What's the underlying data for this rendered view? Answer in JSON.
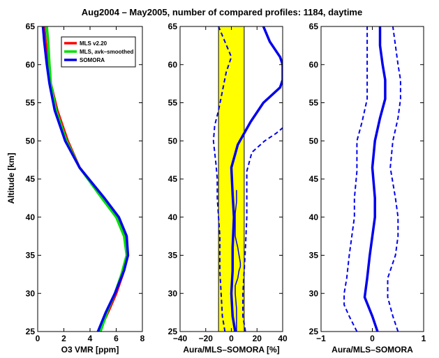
{
  "title": "Aug2004 – May2005,  number of compared profiles: 1184, daytime",
  "y_label": "Altitude [km]",
  "chart_data": [
    {
      "type": "line",
      "xlabel": "O3 VMR [ppm]",
      "xlim": [
        0,
        8
      ],
      "ylim": [
        25,
        65
      ],
      "x_ticks": [
        0,
        2,
        4,
        6,
        8
      ],
      "y_ticks": [
        25,
        30,
        35,
        40,
        45,
        50,
        55,
        60,
        65
      ],
      "legend": {
        "placement": "top-right",
        "entries": [
          "MLS v2.20",
          "MLS, avk–smoothed",
          "SOMORA"
        ]
      },
      "series": [
        {
          "name": "MLS v2.20",
          "color": "#ff0000",
          "style": "solid",
          "points": [
            [
              4.7,
              25
            ],
            [
              5.5,
              28
            ],
            [
              6.0,
              30
            ],
            [
              6.5,
              32.5
            ],
            [
              6.9,
              35
            ],
            [
              6.7,
              37.5
            ],
            [
              6.1,
              40
            ],
            [
              5.0,
              42.5
            ],
            [
              3.2,
              46.5
            ],
            [
              2.3,
              50
            ],
            [
              1.5,
              54
            ],
            [
              1.0,
              57.5
            ],
            [
              0.8,
              60
            ],
            [
              0.6,
              63
            ],
            [
              0.5,
              65
            ]
          ]
        },
        {
          "name": "MLS, avk–smoothed",
          "color": "#00e000",
          "style": "solid",
          "points": [
            [
              4.8,
              25
            ],
            [
              5.4,
              28
            ],
            [
              5.9,
              30
            ],
            [
              6.4,
              32.5
            ],
            [
              6.8,
              35
            ],
            [
              6.6,
              37.5
            ],
            [
              6.0,
              40
            ],
            [
              4.9,
              42.5
            ],
            [
              3.2,
              46.5
            ],
            [
              2.2,
              50
            ],
            [
              1.4,
              54
            ],
            [
              1.0,
              57.5
            ],
            [
              0.9,
              60
            ],
            [
              0.8,
              63
            ],
            [
              0.7,
              65
            ]
          ]
        },
        {
          "name": "SOMORA",
          "color": "#0000ee",
          "style": "solid",
          "points": [
            [
              4.6,
              25
            ],
            [
              5.2,
              27.5
            ],
            [
              5.9,
              30
            ],
            [
              6.6,
              33
            ],
            [
              6.9,
              35
            ],
            [
              6.8,
              37.5
            ],
            [
              6.2,
              40
            ],
            [
              5.1,
              42.5
            ],
            [
              3.2,
              46.5
            ],
            [
              2.1,
              50
            ],
            [
              1.3,
              54
            ],
            [
              0.9,
              57.5
            ],
            [
              0.7,
              60
            ],
            [
              0.5,
              63
            ],
            [
              0.4,
              65
            ]
          ]
        }
      ]
    },
    {
      "type": "line",
      "xlabel": "Aura/MLS–SOMORA [%]",
      "xlim": [
        -40,
        40
      ],
      "ylim": [
        25,
        65
      ],
      "x_ticks": [
        -40,
        -20,
        0,
        20,
        40
      ],
      "y_ticks": [
        25,
        30,
        35,
        40,
        45,
        50,
        55,
        60,
        65
      ],
      "band": {
        "x_min": -10,
        "x_max": 10,
        "color": "#ffff00"
      },
      "series": [
        {
          "role": "mean",
          "color": "#0000ee",
          "style": "solid",
          "points": [
            [
              3,
              25
            ],
            [
              1,
              27
            ],
            [
              0,
              30
            ],
            [
              1,
              33
            ],
            [
              1,
              36
            ],
            [
              2,
              40
            ],
            [
              1,
              43
            ],
            [
              0,
              46.5
            ],
            [
              5,
              49.5
            ],
            [
              15,
              52.5
            ],
            [
              25,
              55
            ],
            [
              38,
              57
            ],
            [
              40,
              58
            ],
            [
              40,
              60
            ],
            [
              38,
              61
            ],
            [
              30,
              63
            ],
            [
              25,
              65
            ]
          ]
        },
        {
          "role": "mean minus std",
          "color": "#0000ee",
          "style": "dashed",
          "points": [
            [
              -5,
              25
            ],
            [
              -7,
              27
            ],
            [
              -8,
              30
            ],
            [
              -9,
              33
            ],
            [
              -9,
              35
            ],
            [
              -9,
              37.5
            ],
            [
              -10,
              40
            ],
            [
              -11,
              42.5
            ],
            [
              -11,
              45
            ],
            [
              -12,
              47
            ],
            [
              -14,
              50
            ],
            [
              -13,
              52
            ],
            [
              -10,
              54
            ],
            [
              -7,
              56.5
            ],
            [
              -4,
              59
            ],
            [
              0,
              61
            ],
            [
              -5,
              63
            ],
            [
              -10,
              65
            ]
          ]
        },
        {
          "role": "mean plus std",
          "color": "#0000ee",
          "style": "dashed",
          "points": [
            [
              11,
              25
            ],
            [
              9,
              27
            ],
            [
              9,
              30
            ],
            [
              10,
              33
            ],
            [
              11,
              36
            ],
            [
              12,
              40
            ],
            [
              12,
              43
            ],
            [
              12,
              46
            ],
            [
              16,
              48.5
            ],
            [
              26,
              50
            ],
            [
              35,
              51
            ],
            [
              40,
              51.7
            ]
          ]
        },
        {
          "role": "zero",
          "color": "#0000ee",
          "style": "solid-thin",
          "points": [
            [
              4,
              25
            ],
            [
              4,
              27
            ],
            [
              4,
              28
            ],
            [
              3,
              30
            ],
            [
              3,
              31
            ],
            [
              5,
              32
            ],
            [
              6,
              33
            ],
            [
              7,
              33.5
            ],
            [
              7,
              34
            ],
            [
              6,
              35
            ],
            [
              5,
              36
            ],
            [
              3,
              37.5
            ],
            [
              3,
              39
            ],
            [
              3,
              40.5
            ],
            [
              4,
              42
            ],
            [
              4,
              43.5
            ]
          ]
        }
      ]
    },
    {
      "type": "line",
      "xlabel": "Aura/MLS–SOMORA",
      "xlim": [
        -1,
        1
      ],
      "ylim": [
        25,
        65
      ],
      "x_ticks": [
        -1,
        0,
        1
      ],
      "y_ticks": [
        25,
        30,
        35,
        40,
        45,
        50,
        55,
        60,
        65
      ],
      "series": [
        {
          "role": "mean",
          "color": "#0000ee",
          "style": "solid",
          "points": [
            [
              0.1,
              25
            ],
            [
              0.0,
              27
            ],
            [
              -0.15,
              29.5
            ],
            [
              -0.1,
              32
            ],
            [
              -0.05,
              35
            ],
            [
              0.0,
              37.5
            ],
            [
              0.05,
              40
            ],
            [
              0.05,
              42.5
            ],
            [
              0.0,
              46.5
            ],
            [
              0.05,
              50
            ],
            [
              0.15,
              53
            ],
            [
              0.25,
              55.5
            ],
            [
              0.25,
              58
            ],
            [
              0.2,
              60
            ],
            [
              0.15,
              62.5
            ],
            [
              0.15,
              65
            ]
          ]
        },
        {
          "role": "mean minus std",
          "color": "#0000ee",
          "style": "dashed",
          "points": [
            [
              -0.3,
              25
            ],
            [
              -0.45,
              27
            ],
            [
              -0.55,
              28.5
            ],
            [
              -0.55,
              30
            ],
            [
              -0.5,
              32
            ],
            [
              -0.45,
              35
            ],
            [
              -0.4,
              37.5
            ],
            [
              -0.35,
              40
            ],
            [
              -0.35,
              42.5
            ],
            [
              -0.3,
              46
            ],
            [
              -0.3,
              50
            ],
            [
              -0.2,
              52.5
            ],
            [
              -0.1,
              55.5
            ],
            [
              -0.1,
              58
            ],
            [
              -0.1,
              60
            ],
            [
              -0.1,
              62.5
            ],
            [
              -0.1,
              65
            ]
          ]
        },
        {
          "role": "mean plus std",
          "color": "#0000ee",
          "style": "dashed",
          "points": [
            [
              0.5,
              25
            ],
            [
              0.4,
              27
            ],
            [
              0.3,
              29.5
            ],
            [
              0.3,
              32
            ],
            [
              0.45,
              35
            ],
            [
              0.5,
              37.5
            ],
            [
              0.5,
              40
            ],
            [
              0.45,
              42.5
            ],
            [
              0.35,
              46.5
            ],
            [
              0.4,
              50
            ],
            [
              0.5,
              53
            ],
            [
              0.55,
              55.5
            ],
            [
              0.55,
              58
            ],
            [
              0.5,
              60
            ],
            [
              0.45,
              62.5
            ],
            [
              0.4,
              65
            ]
          ]
        }
      ]
    }
  ]
}
